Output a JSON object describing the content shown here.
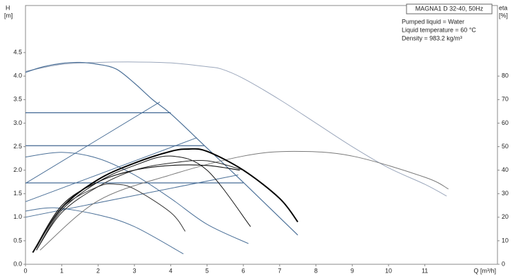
{
  "chart_data": {
    "type": "line",
    "ylabel": [
      "H",
      "[m]"
    ],
    "y2label": [
      "eta",
      "[%]"
    ],
    "xlabel": "Q [m³/h]",
    "legend_title": "MAGNA1 D 32-40, 50Hz",
    "notes": [
      "Pumped liquid = Water",
      "Liquid temperature = 60 °C",
      "Density = 983.2 kg/m³"
    ],
    "xlim": [
      0,
      13
    ],
    "xticks": [
      0,
      1,
      2,
      3,
      4,
      5,
      6,
      7,
      8,
      9,
      10,
      11
    ],
    "ylim": [
      0,
      5.5
    ],
    "yticks": [
      {
        "value": 0,
        "label": "0.0"
      },
      0.5,
      {
        "value": 1,
        "label": "1.0"
      },
      1.5,
      {
        "value": 2,
        "label": "2.0"
      },
      2.5,
      {
        "value": 3,
        "label": "3.0"
      },
      3.5,
      {
        "value": 4,
        "label": "4.0"
      },
      4.5
    ],
    "y2lim": [
      0,
      110
    ],
    "y2ticks": [
      0,
      10,
      20,
      30,
      40,
      50,
      60,
      70,
      80
    ],
    "series": [
      {
        "color": "#9aa6bb",
        "width": 1,
        "x": [
          0,
          1,
          2,
          3,
          4,
          5,
          5.4,
          6,
          7,
          8,
          9,
          10,
          11,
          11.6
        ],
        "values": [
          4.1,
          4.25,
          4.29,
          4.3,
          4.28,
          4.2,
          4.15,
          3.95,
          3.5,
          3.0,
          2.5,
          2.05,
          1.7,
          1.45
        ]
      },
      {
        "color": "#4a6f97",
        "width": 1.2,
        "x": [
          0,
          0.5,
          1,
          1.5,
          2,
          2.5,
          3,
          3.5,
          4,
          5,
          6,
          7.5
        ],
        "values": [
          4.08,
          4.2,
          4.27,
          4.29,
          4.25,
          4.15,
          3.85,
          3.5,
          3.2,
          2.47,
          1.74,
          0.62
        ]
      },
      {
        "color": "#2f5a8a",
        "width": 1.2,
        "x": [
          0,
          4
        ],
        "values": [
          3.22,
          3.22
        ]
      },
      {
        "color": "#6a86a8",
        "width": 1.6,
        "x": [
          0,
          4.93
        ],
        "values": [
          2.52,
          2.52
        ]
      },
      {
        "color": "#2f5a8a",
        "width": 1.2,
        "x": [
          0,
          6
        ],
        "values": [
          1.73,
          1.73
        ]
      },
      {
        "color": "#4a6f97",
        "width": 1,
        "x": [
          0,
          3.7
        ],
        "values": [
          1.72,
          3.45
        ]
      },
      {
        "color": "#4a6f97",
        "width": 1,
        "x": [
          0,
          4.72
        ],
        "values": [
          1.33,
          2.69
        ]
      },
      {
        "color": "#4a6f97",
        "width": 1,
        "x": [
          0,
          5.86
        ],
        "values": [
          1.0,
          1.9
        ]
      },
      {
        "color": "#4a6f97",
        "width": 1,
        "x": [
          0,
          1,
          2,
          3,
          4,
          5,
          6.14
        ],
        "values": [
          2.28,
          2.38,
          2.25,
          1.9,
          1.4,
          0.85,
          0.44
        ]
      },
      {
        "color": "#4a6f97",
        "width": 1,
        "x": [
          0,
          0.8,
          2,
          3,
          4.35
        ],
        "values": [
          1.13,
          1.2,
          1.05,
          0.8,
          0.22
        ]
      },
      {
        "color": "#777777",
        "width": 1,
        "axis": "y2",
        "x": [
          0.4,
          2,
          4,
          6,
          7.4,
          9,
          11,
          11.65
        ],
        "values": [
          6,
          27,
          38,
          46,
          48,
          46,
          37,
          32
        ]
      },
      {
        "color": "#000000",
        "width": 2,
        "axis": "y2",
        "x": [
          0.2,
          1,
          2,
          3,
          4,
          4.5,
          5,
          6,
          7,
          7.5
        ],
        "values": [
          5,
          24,
          36,
          43,
          48,
          49,
          48,
          40,
          28,
          18
        ]
      },
      {
        "color": "#111111",
        "width": 1,
        "axis": "y2",
        "x": [
          0.3,
          1,
          2,
          3,
          4,
          5,
          6.2
        ],
        "values": [
          6,
          23,
          35,
          42,
          46,
          40,
          16
        ]
      },
      {
        "color": "#333333",
        "width": 1,
        "axis": "y2",
        "x": [
          0.3,
          1,
          2,
          2.5,
          3,
          4,
          4.4
        ],
        "values": [
          7,
          24,
          33,
          34,
          32,
          22,
          14
        ]
      },
      {
        "color": "#111111",
        "width": 1.2,
        "axis": "y2",
        "x": [
          0.2,
          1,
          2,
          3,
          4,
          5,
          5.9
        ],
        "values": [
          5,
          25,
          35,
          40,
          42,
          42,
          40
        ]
      },
      {
        "color": "#222222",
        "width": 1,
        "axis": "y2",
        "x": [
          0.3,
          1,
          2,
          3,
          4,
          5,
          6
        ],
        "values": [
          6,
          22,
          33,
          40,
          43,
          44,
          40
        ]
      }
    ]
  }
}
